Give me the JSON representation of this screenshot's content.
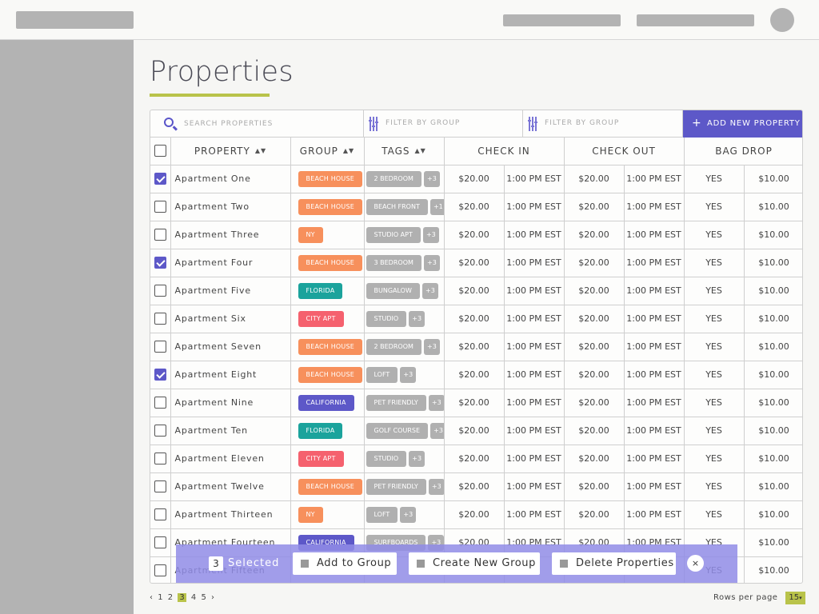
{
  "page": {
    "title": "Properties"
  },
  "toolbar": {
    "search_placeholder": "SEARCH PROPERTIES",
    "filter1_label": "FILTER BY GROUP",
    "filter2_label": "FILTER BY GROUP",
    "add_label": "ADD NEW PROPERTY",
    "add_icon": "+"
  },
  "table": {
    "headers": {
      "property": "PROPERTY",
      "group": "GROUP",
      "tags": "TAGS",
      "check_in": "CHECK IN",
      "check_out": "CHECK OUT",
      "bag_drop": "BAG DROP"
    },
    "sort_icon": "▲▼",
    "rows": [
      {
        "checked": true,
        "name": "Apartment One",
        "group": "BEACH HOUSE",
        "group_color": "#f7905c",
        "tag": "2 BEDROOM",
        "more": "+3",
        "ci_price": "$20.00",
        "ci_time": "1:00 PM EST",
        "co_price": "$20.00",
        "co_time": "1:00 PM EST",
        "bd": "YES",
        "bd_price": "$10.00"
      },
      {
        "checked": false,
        "name": "Apartment Two",
        "group": "BEACH HOUSE",
        "group_color": "#f7905c",
        "tag": "BEACH FRONT",
        "more": "+1",
        "ci_price": "$20.00",
        "ci_time": "1:00 PM EST",
        "co_price": "$20.00",
        "co_time": "1:00 PM EST",
        "bd": "YES",
        "bd_price": "$10.00"
      },
      {
        "checked": false,
        "name": "Apartment Three",
        "group": "NY",
        "group_color": "#f7905c",
        "tag": "STUDIO APT",
        "more": "+3",
        "ci_price": "$20.00",
        "ci_time": "1:00 PM EST",
        "co_price": "$20.00",
        "co_time": "1:00 PM EST",
        "bd": "YES",
        "bd_price": "$10.00"
      },
      {
        "checked": true,
        "name": "Apartment Four",
        "group": "BEACH HOUSE",
        "group_color": "#f7905c",
        "tag": "3 BEDROOM",
        "more": "+3",
        "ci_price": "$20.00",
        "ci_time": "1:00 PM EST",
        "co_price": "$20.00",
        "co_time": "1:00 PM EST",
        "bd": "YES",
        "bd_price": "$10.00"
      },
      {
        "checked": false,
        "name": "Apartment Five",
        "group": "FLORIDA",
        "group_color": "#1ba39c",
        "tag": "BUNGALOW",
        "more": "+3",
        "ci_price": "$20.00",
        "ci_time": "1:00 PM EST",
        "co_price": "$20.00",
        "co_time": "1:00 PM EST",
        "bd": "YES",
        "bd_price": "$10.00"
      },
      {
        "checked": false,
        "name": "Apartment Six",
        "group": "CITY APT",
        "group_color": "#f5616e",
        "tag": "STUDIO",
        "more": "+3",
        "ci_price": "$20.00",
        "ci_time": "1:00 PM EST",
        "co_price": "$20.00",
        "co_time": "1:00 PM EST",
        "bd": "YES",
        "bd_price": "$10.00"
      },
      {
        "checked": false,
        "name": "Apartment Seven",
        "group": "BEACH HOUSE",
        "group_color": "#f7905c",
        "tag": "2 BEDROOM",
        "more": "+3",
        "ci_price": "$20.00",
        "ci_time": "1:00 PM EST",
        "co_price": "$20.00",
        "co_time": "1:00 PM EST",
        "bd": "YES",
        "bd_price": "$10.00"
      },
      {
        "checked": true,
        "name": "Apartment Eight",
        "group": "BEACH HOUSE",
        "group_color": "#f7905c",
        "tag": "LOFT",
        "more": "+3",
        "ci_price": "$20.00",
        "ci_time": "1:00 PM EST",
        "co_price": "$20.00",
        "co_time": "1:00 PM EST",
        "bd": "YES",
        "bd_price": "$10.00"
      },
      {
        "checked": false,
        "name": "Apartment Nine",
        "group": "CALIFORNIA",
        "group_color": "#5d58c8",
        "tag": "PET FRIENDLY",
        "more": "+3",
        "ci_price": "$20.00",
        "ci_time": "1:00 PM EST",
        "co_price": "$20.00",
        "co_time": "1:00 PM EST",
        "bd": "YES",
        "bd_price": "$10.00"
      },
      {
        "checked": false,
        "name": "Apartment Ten",
        "group": "FLORIDA",
        "group_color": "#1ba39c",
        "tag": "GOLF COURSE",
        "more": "+3",
        "ci_price": "$20.00",
        "ci_time": "1:00 PM EST",
        "co_price": "$20.00",
        "co_time": "1:00 PM EST",
        "bd": "YES",
        "bd_price": "$10.00"
      },
      {
        "checked": false,
        "name": "Apartment Eleven",
        "group": "CITY APT",
        "group_color": "#f5616e",
        "tag": "STUDIO",
        "more": "+3",
        "ci_price": "$20.00",
        "ci_time": "1:00 PM EST",
        "co_price": "$20.00",
        "co_time": "1:00 PM EST",
        "bd": "YES",
        "bd_price": "$10.00"
      },
      {
        "checked": false,
        "name": "Apartment Twelve",
        "group": "BEACH HOUSE",
        "group_color": "#f7905c",
        "tag": "PET FRIENDLY",
        "more": "+3",
        "ci_price": "$20.00",
        "ci_time": "1:00 PM EST",
        "co_price": "$20.00",
        "co_time": "1:00 PM EST",
        "bd": "YES",
        "bd_price": "$10.00"
      },
      {
        "checked": false,
        "name": "Apartment Thirteen",
        "group": "NY",
        "group_color": "#f7905c",
        "tag": "LOFT",
        "more": "+3",
        "ci_price": "$20.00",
        "ci_time": "1:00 PM EST",
        "co_price": "$20.00",
        "co_time": "1:00 PM EST",
        "bd": "YES",
        "bd_price": "$10.00"
      },
      {
        "checked": false,
        "name": "Apartment Fourteen",
        "group": "CALIFORNIA",
        "group_color": "#5d58c8",
        "tag": "SURFBOARDS",
        "more": "+3",
        "ci_price": "$20.00",
        "ci_time": "1:00 PM EST",
        "co_price": "$20.00",
        "co_time": "1:00 PM EST",
        "bd": "YES",
        "bd_price": "$10.00"
      },
      {
        "checked": false,
        "name": "Apartment Fifteen",
        "group": "",
        "group_color": "#5d58c8",
        "tag": "",
        "more": "",
        "ci_price": "",
        "ci_time": "",
        "co_price": "",
        "co_time": "",
        "bd": "YES",
        "bd_price": "$10.00"
      }
    ]
  },
  "action_bar": {
    "count": "3",
    "selected_label": "Selected",
    "add_group": "Add to Group",
    "create_group": "Create New Group",
    "delete": "Delete Properties",
    "close_icon": "×"
  },
  "pagination": {
    "prev": "‹",
    "pages": [
      "1",
      "2",
      "3",
      "4",
      "5"
    ],
    "current": "3",
    "next": "›"
  },
  "rows_per_page": {
    "label": "Rows per page",
    "value": "15"
  }
}
